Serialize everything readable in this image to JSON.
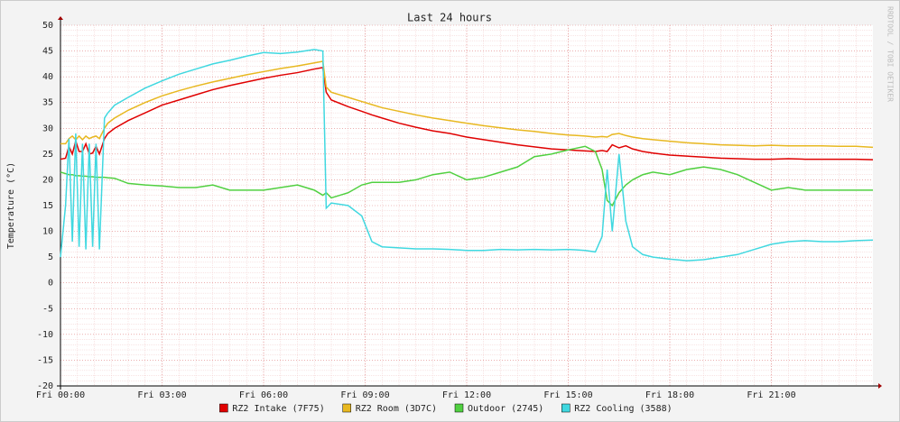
{
  "chart_data": {
    "type": "line",
    "title": "Last 24 hours",
    "y_label": "Temperature (°C)",
    "side_label": "RRDTOOL / TOBI OETIKER",
    "x": [
      0,
      0.15,
      0.25,
      0.35,
      0.45,
      0.55,
      0.65,
      0.75,
      0.85,
      0.95,
      1.05,
      1.15,
      1.3,
      1.4,
      1.6,
      2,
      2.5,
      3,
      3.5,
      4,
      4.5,
      5,
      5.5,
      6,
      6.5,
      7,
      7.5,
      7.75,
      7.85,
      8,
      8.5,
      8.9,
      9.2,
      9.5,
      10,
      10.5,
      11,
      11.5,
      12,
      12.5,
      13,
      13.5,
      14,
      14.5,
      15,
      15.5,
      15.8,
      16,
      16.15,
      16.3,
      16.5,
      16.7,
      16.9,
      17.2,
      17.5,
      18,
      18.5,
      19,
      19.5,
      20,
      20.5,
      21,
      21.5,
      22,
      22.5,
      23,
      23.5,
      24
    ],
    "series": [
      {
        "name": "RZ2 Intake (7F75)",
        "color": "#e00000",
        "values": [
          24,
          24.2,
          26.5,
          25,
          27.5,
          25.5,
          25.5,
          27,
          25,
          25.2,
          26.5,
          25,
          28,
          29,
          30,
          31.5,
          33,
          34.5,
          35.5,
          36.5,
          37.5,
          38.3,
          39,
          39.7,
          40.3,
          40.8,
          41.5,
          41.8,
          37,
          35.5,
          34.2,
          33.3,
          32.6,
          32,
          31,
          30.2,
          29.5,
          29,
          28.3,
          27.8,
          27.3,
          26.8,
          26.4,
          26,
          25.8,
          25.6,
          25.5,
          25.7,
          25.5,
          26.8,
          26.2,
          26.6,
          26,
          25.5,
          25.2,
          24.8,
          24.6,
          24.4,
          24.2,
          24.1,
          24,
          24,
          24.1,
          24,
          24,
          24,
          24,
          23.9
        ]
      },
      {
        "name": "RZ2 Room (3D7C)",
        "color": "#e8b820",
        "values": [
          27,
          27,
          28,
          28.5,
          27.8,
          28.5,
          27.8,
          28.5,
          28,
          28.3,
          28.5,
          28,
          30,
          31,
          32,
          33.5,
          35,
          36.3,
          37.3,
          38.2,
          39,
          39.7,
          40.4,
          41,
          41.6,
          42.1,
          42.7,
          43,
          38,
          37,
          36,
          35.2,
          34.6,
          34,
          33.3,
          32.6,
          32,
          31.5,
          31,
          30.5,
          30.1,
          29.7,
          29.4,
          29,
          28.7,
          28.5,
          28.3,
          28.4,
          28.3,
          28.8,
          29,
          28.6,
          28.3,
          28,
          27.8,
          27.5,
          27.2,
          27,
          26.8,
          26.7,
          26.6,
          26.7,
          26.6,
          26.6,
          26.6,
          26.5,
          26.5,
          26.3
        ]
      },
      {
        "name": "Outdoor (2745)",
        "color": "#50d040",
        "values": [
          21.5,
          21.2,
          21,
          21,
          20.8,
          20.8,
          20.7,
          20.7,
          20.6,
          20.6,
          20.5,
          20.5,
          20.5,
          20.4,
          20.3,
          19.3,
          19,
          18.8,
          18.5,
          18.5,
          19,
          18,
          18,
          18,
          18.5,
          19,
          18,
          17,
          17.5,
          16.5,
          17.5,
          19,
          19.5,
          19.5,
          19.5,
          20,
          21,
          21.5,
          20,
          20.5,
          21.5,
          22.5,
          24.5,
          25,
          25.8,
          26.5,
          25.5,
          22,
          16,
          15,
          17.5,
          19,
          20,
          21,
          21.5,
          21,
          22,
          22.5,
          22,
          21,
          19.5,
          18,
          18.5,
          18,
          18,
          18,
          18,
          18
        ]
      },
      {
        "name": "RZ2 Cooling (3588)",
        "color": "#40d8e0",
        "values": [
          5,
          15,
          28,
          8,
          29,
          7,
          27,
          6.5,
          27,
          7,
          27,
          6.5,
          32,
          33,
          34.5,
          36,
          37.8,
          39.2,
          40.5,
          41.5,
          42.5,
          43.2,
          44,
          44.7,
          44.5,
          44.8,
          45.3,
          45,
          14.5,
          15.5,
          15,
          13,
          8,
          7,
          6.8,
          6.6,
          6.6,
          6.5,
          6.3,
          6.3,
          6.5,
          6.4,
          6.5,
          6.4,
          6.5,
          6.3,
          6,
          9,
          22,
          10,
          25,
          12,
          7,
          5.5,
          5,
          4.6,
          4.3,
          4.5,
          5,
          5.5,
          6.5,
          7.5,
          8,
          8.2,
          8,
          8,
          8.2,
          8.3
        ]
      }
    ],
    "xlim": [
      0,
      24
    ],
    "xticks": [
      {
        "value": 0,
        "label": "Fri 00:00"
      },
      {
        "value": 3,
        "label": "Fri 03:00"
      },
      {
        "value": 6,
        "label": "Fri 06:00"
      },
      {
        "value": 9,
        "label": "Fri 09:00"
      },
      {
        "value": 12,
        "label": "Fri 12:00"
      },
      {
        "value": 15,
        "label": "Fri 15:00"
      },
      {
        "value": 18,
        "label": "Fri 18:00"
      },
      {
        "value": 21,
        "label": "Fri 21:00"
      }
    ],
    "ylim": [
      -20,
      50
    ],
    "yticks": [
      -20,
      -15,
      -10,
      -5,
      0,
      5,
      10,
      15,
      20,
      25,
      30,
      35,
      40,
      45,
      50
    ],
    "grid": true,
    "legend": "bottom"
  }
}
